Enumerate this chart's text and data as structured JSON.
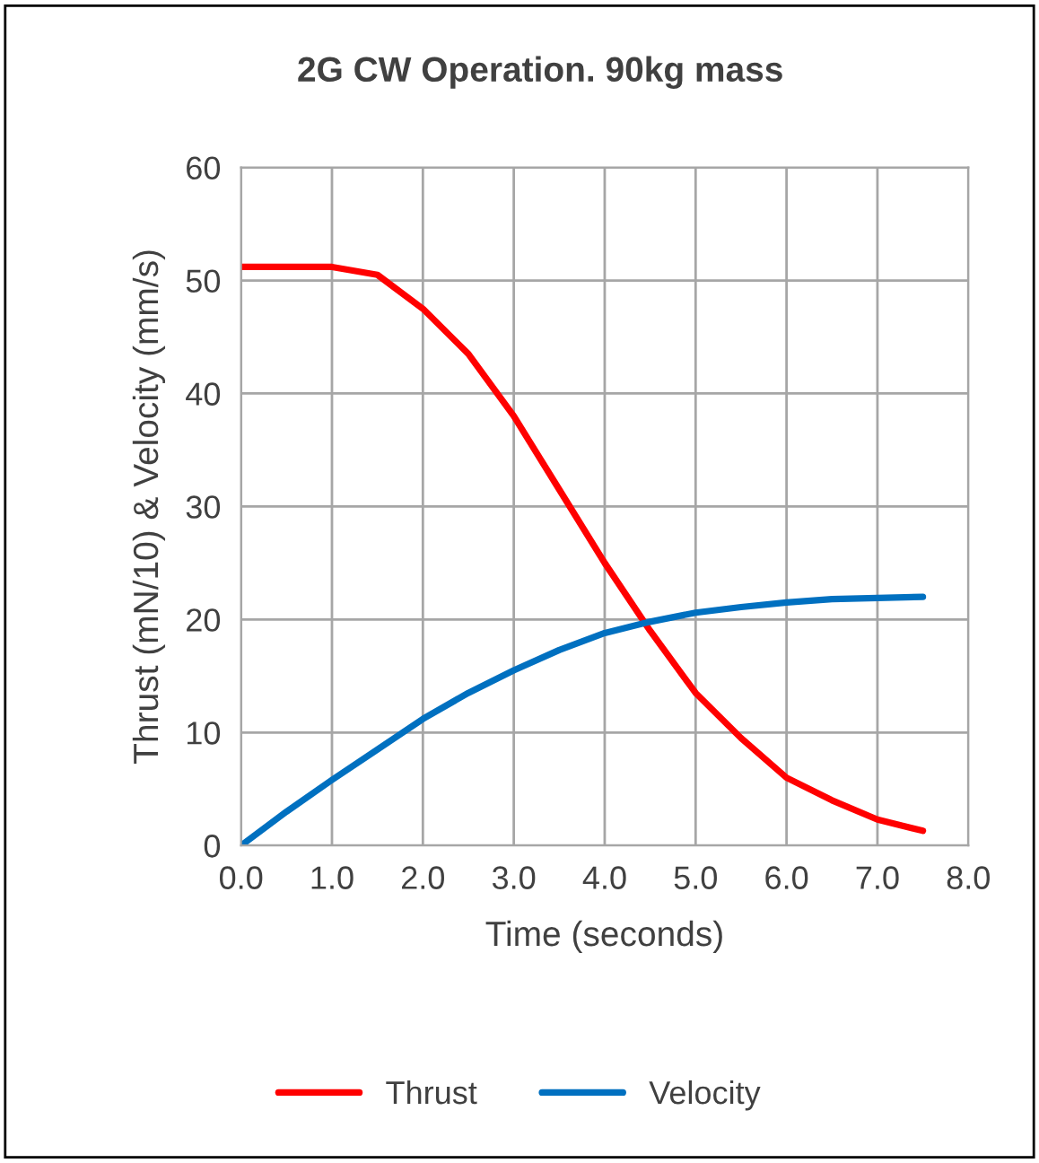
{
  "chart_data": {
    "type": "line",
    "title": "2G CW Operation. 90kg mass",
    "xlabel": "Time (seconds)",
    "ylabel": "Thrust (mN/10) & Velocity (mm/s)",
    "x": [
      0.0,
      0.5,
      1.0,
      1.5,
      2.0,
      2.5,
      3.0,
      3.5,
      4.0,
      4.5,
      5.0,
      5.5,
      6.0,
      6.5,
      7.0,
      7.5
    ],
    "series": [
      {
        "name": "Thrust",
        "color": "#ff0000",
        "values": [
          51.2,
          51.2,
          51.2,
          50.5,
          47.5,
          43.5,
          38,
          31.5,
          25,
          19,
          13.5,
          9.5,
          6,
          4,
          2.3,
          1.3
        ]
      },
      {
        "name": "Velocity",
        "color": "#0070c0",
        "values": [
          0,
          3,
          5.8,
          8.5,
          11.2,
          13.5,
          15.5,
          17.3,
          18.8,
          19.8,
          20.6,
          21.1,
          21.5,
          21.8,
          21.9,
          22.0
        ]
      }
    ],
    "xlim": [
      0,
      8
    ],
    "xticks": [
      {
        "value": 0,
        "label": "0.0"
      },
      {
        "value": 1,
        "label": "1.0"
      },
      {
        "value": 2,
        "label": "2.0"
      },
      {
        "value": 3,
        "label": "3.0"
      },
      {
        "value": 4,
        "label": "4.0"
      },
      {
        "value": 5,
        "label": "5.0"
      },
      {
        "value": 6,
        "label": "6.0"
      },
      {
        "value": 7,
        "label": "7.0"
      },
      {
        "value": 8,
        "label": "8.0"
      }
    ],
    "ylim": [
      0,
      60
    ],
    "yticks": [
      0,
      10,
      20,
      30,
      40,
      50,
      60
    ],
    "grid": true,
    "legend": "bottom",
    "marker": "none",
    "line_style": "solid"
  }
}
